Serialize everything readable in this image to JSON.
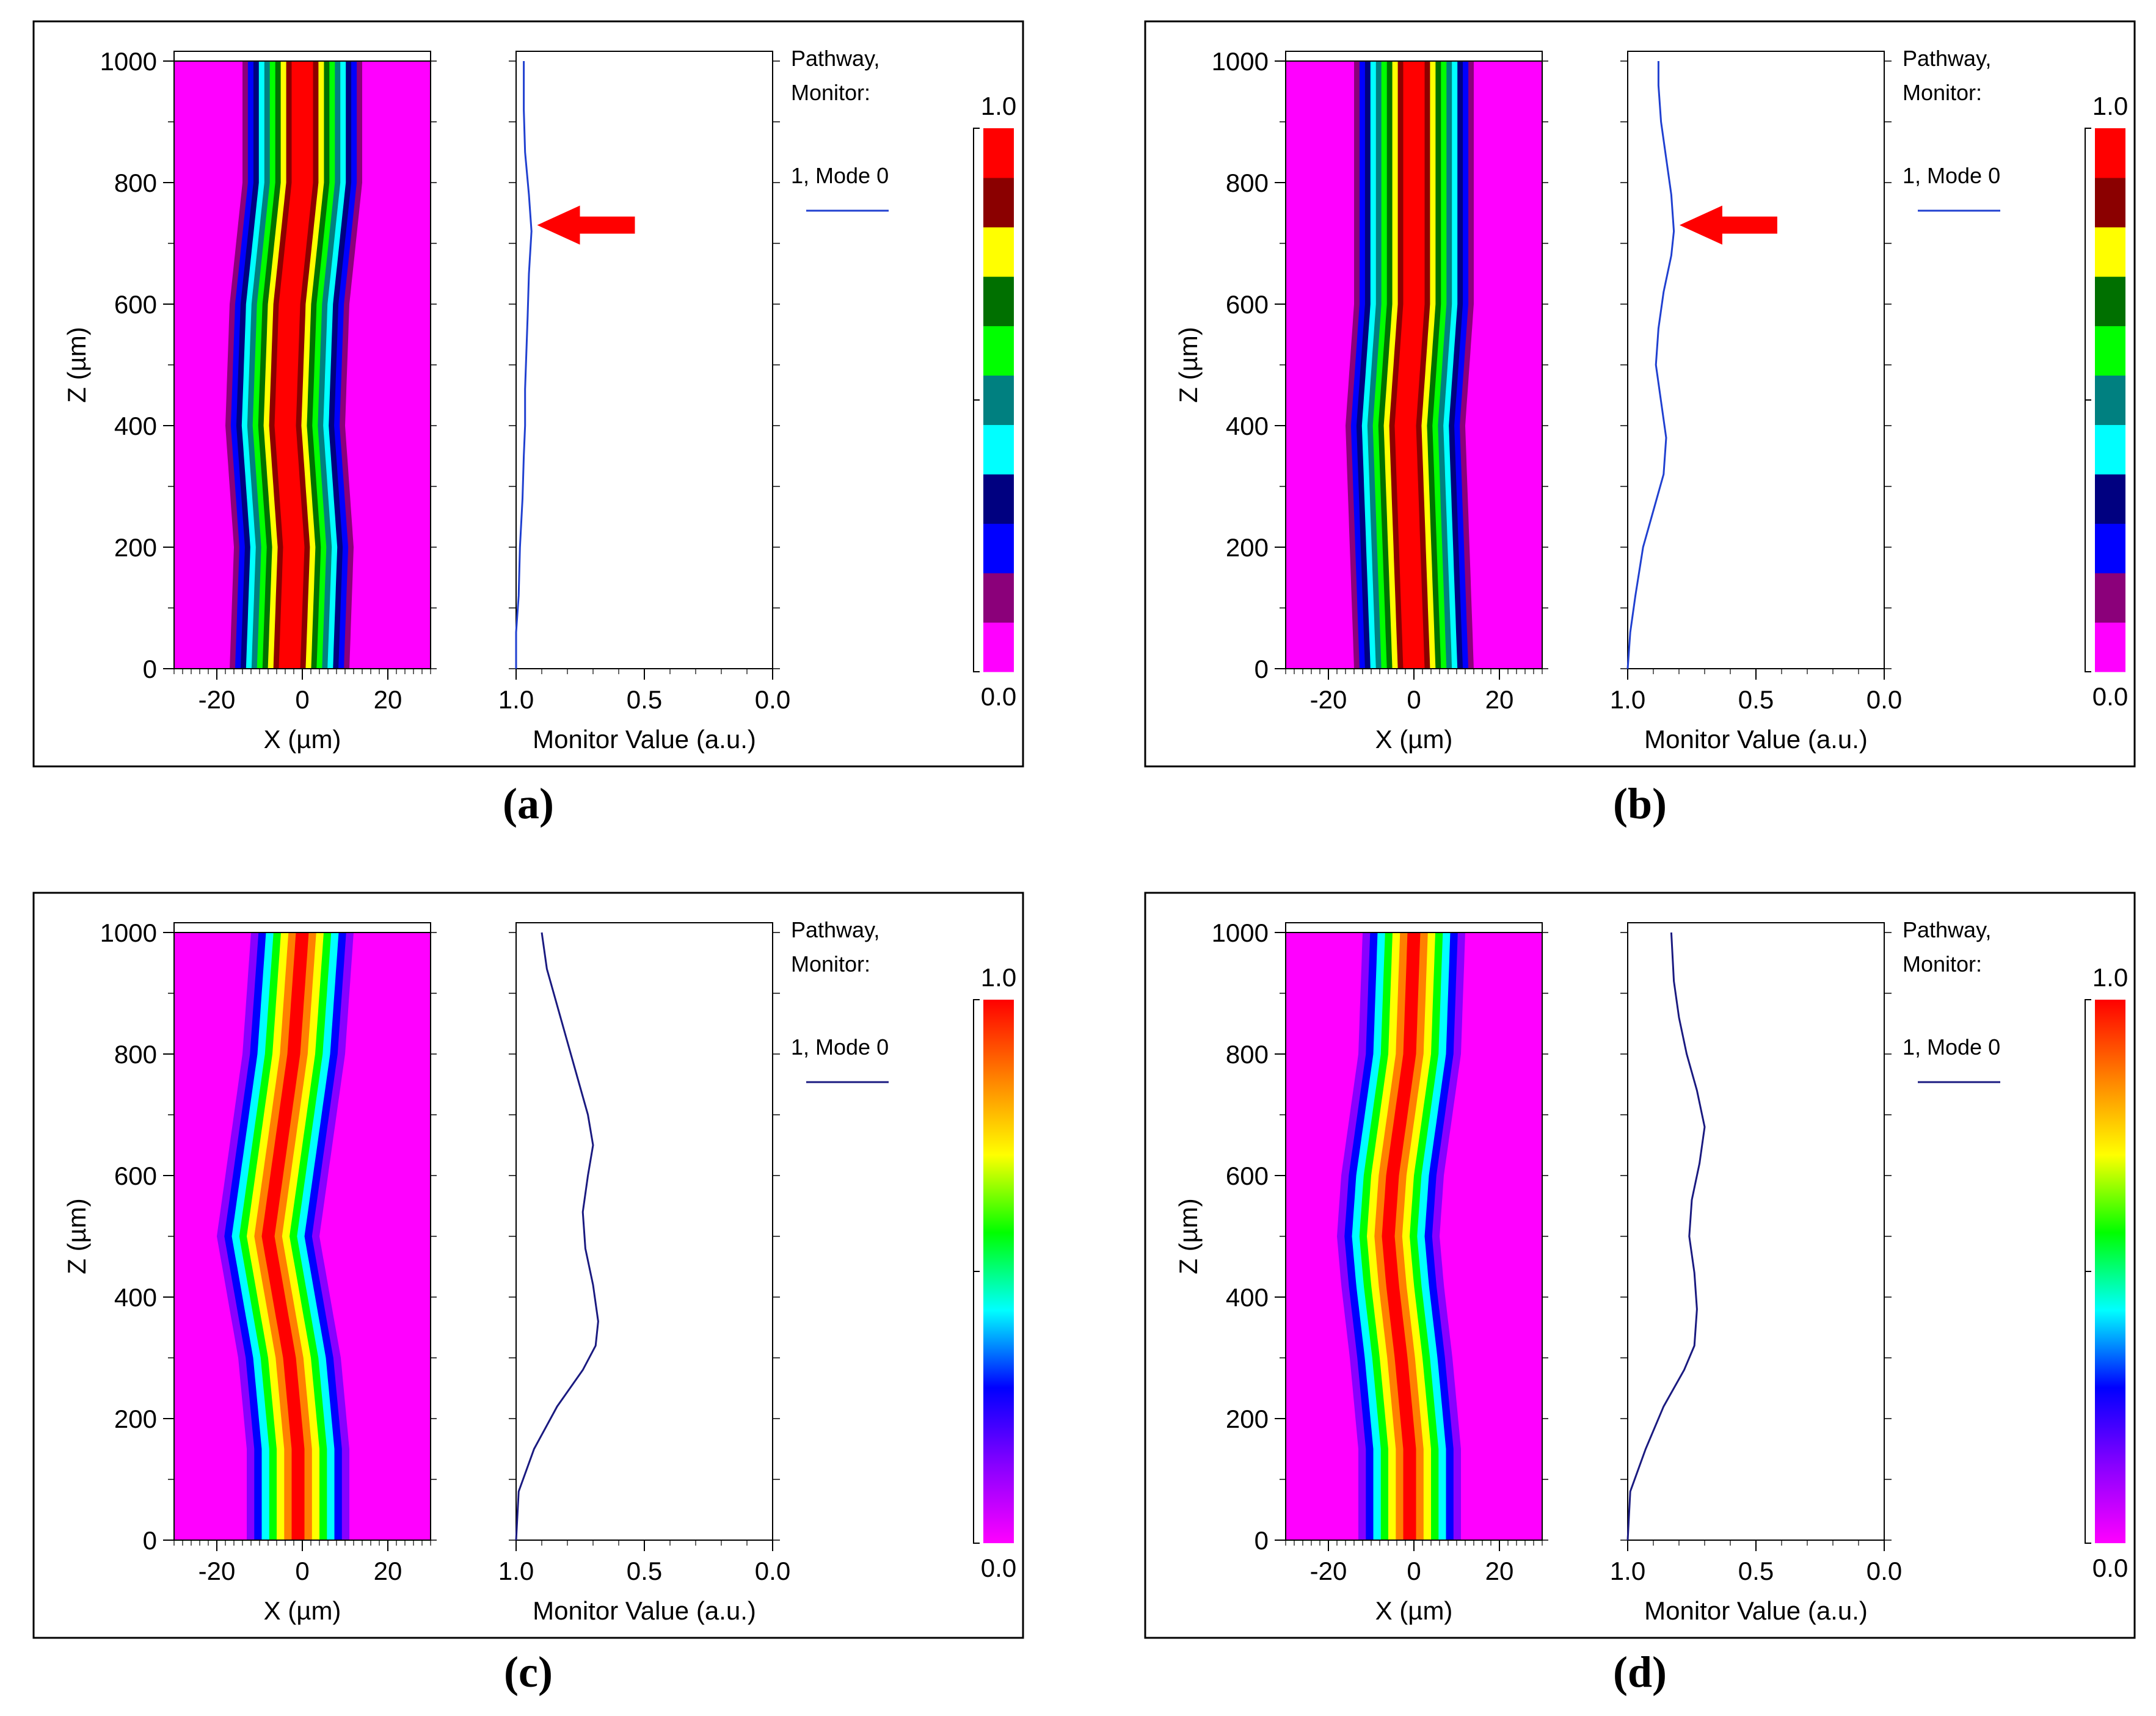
{
  "figure": {
    "panels_count": 4
  },
  "chart_data": [
    {
      "panel": "a",
      "caption": "(a)",
      "style": "discrete",
      "type": "heatmap",
      "field": {
        "xlabel": "X (µm)",
        "ylabel": "Z (µm)",
        "xlim": [
          -30,
          30
        ],
        "ylim": [
          0,
          1000
        ],
        "xticks": [
          -20,
          0,
          20
        ],
        "yticks": [
          0,
          200,
          400,
          600,
          800,
          1000
        ],
        "path_center_x": [
          [
            0,
            -3
          ],
          [
            200,
            -2
          ],
          [
            400,
            -4
          ],
          [
            600,
            -3
          ],
          [
            800,
            0
          ],
          [
            1000,
            0
          ]
        ],
        "core_halfwidth": 4
      },
      "monitor": {
        "type": "line",
        "xlabel": "Monitor Value (a.u.)",
        "xlim": [
          1.0,
          0.0
        ],
        "xticks": [
          1.0,
          0.5,
          0.0
        ],
        "line_color": "#2040d0",
        "points": [
          [
            0,
            1.0
          ],
          [
            60,
            1.0
          ],
          [
            120,
            0.99
          ],
          [
            200,
            0.985
          ],
          [
            280,
            0.975
          ],
          [
            350,
            0.97
          ],
          [
            400,
            0.965
          ],
          [
            460,
            0.965
          ],
          [
            520,
            0.96
          ],
          [
            580,
            0.955
          ],
          [
            650,
            0.95
          ],
          [
            720,
            0.94
          ],
          [
            780,
            0.95
          ],
          [
            850,
            0.965
          ],
          [
            920,
            0.97
          ],
          [
            1000,
            0.97
          ]
        ]
      },
      "legend": {
        "title_line1": "Pathway,",
        "title_line2": "Monitor:",
        "entry": "1, Mode 0",
        "color": "#2040d0"
      },
      "colorbar": {
        "max_label": "1.0",
        "min_label": "0.0"
      },
      "arrow": {
        "z": 730,
        "color": "#ff0000"
      }
    },
    {
      "panel": "b",
      "caption": "(b)",
      "style": "discrete",
      "type": "heatmap",
      "field": {
        "xlabel": "X (µm)",
        "ylabel": "Z (µm)",
        "xlim": [
          -30,
          30
        ],
        "ylim": [
          0,
          1000
        ],
        "xticks": [
          -20,
          0,
          20
        ],
        "yticks": [
          0,
          200,
          400,
          600,
          800,
          1000
        ],
        "path_center_x": [
          [
            0,
            0
          ],
          [
            200,
            -1
          ],
          [
            400,
            -2
          ],
          [
            600,
            0
          ],
          [
            800,
            0
          ],
          [
            1000,
            0
          ]
        ],
        "core_halfwidth": 4
      },
      "monitor": {
        "type": "line",
        "xlabel": "Monitor Value (a.u.)",
        "xlim": [
          1.0,
          0.0
        ],
        "xticks": [
          1.0,
          0.5,
          0.0
        ],
        "line_color": "#2040d0",
        "points": [
          [
            0,
            1.0
          ],
          [
            60,
            0.99
          ],
          [
            120,
            0.97
          ],
          [
            200,
            0.94
          ],
          [
            260,
            0.9
          ],
          [
            320,
            0.86
          ],
          [
            380,
            0.85
          ],
          [
            440,
            0.87
          ],
          [
            500,
            0.89
          ],
          [
            560,
            0.88
          ],
          [
            620,
            0.86
          ],
          [
            680,
            0.83
          ],
          [
            720,
            0.82
          ],
          [
            780,
            0.83
          ],
          [
            840,
            0.85
          ],
          [
            900,
            0.87
          ],
          [
            960,
            0.88
          ],
          [
            1000,
            0.88
          ]
        ]
      },
      "legend": {
        "title_line1": "Pathway,",
        "title_line2": "Monitor:",
        "entry": "1, Mode 0",
        "color": "#2040d0"
      },
      "colorbar": {
        "max_label": "1.0",
        "min_label": "0.0"
      },
      "arrow": {
        "z": 730,
        "color": "#ff0000"
      }
    },
    {
      "panel": "c",
      "caption": "(c)",
      "style": "continuous",
      "type": "heatmap",
      "field": {
        "xlabel": "X (µm)",
        "ylabel": "Z (µm)",
        "xlim": [
          -30,
          30
        ],
        "ylim": [
          0,
          1000
        ],
        "xticks": [
          -20,
          0,
          20
        ],
        "yticks": [
          0,
          200,
          400,
          600,
          800,
          1000
        ],
        "path_center_x": [
          [
            0,
            -1
          ],
          [
            150,
            -1
          ],
          [
            300,
            -3
          ],
          [
            420,
            -6
          ],
          [
            500,
            -8
          ],
          [
            600,
            -6
          ],
          [
            700,
            -4
          ],
          [
            800,
            -2
          ],
          [
            1000,
            0
          ]
        ],
        "core_halfwidth": 3
      },
      "monitor": {
        "type": "line",
        "xlabel": "Monitor Value (a.u.)",
        "xlim": [
          1.0,
          0.0
        ],
        "xticks": [
          1.0,
          0.5,
          0.0
        ],
        "line_color": "#1a1a80",
        "points": [
          [
            0,
            1.0
          ],
          [
            80,
            0.99
          ],
          [
            150,
            0.93
          ],
          [
            220,
            0.84
          ],
          [
            280,
            0.74
          ],
          [
            320,
            0.69
          ],
          [
            360,
            0.68
          ],
          [
            420,
            0.7
          ],
          [
            480,
            0.73
          ],
          [
            540,
            0.74
          ],
          [
            600,
            0.72
          ],
          [
            650,
            0.7
          ],
          [
            700,
            0.72
          ],
          [
            760,
            0.76
          ],
          [
            820,
            0.8
          ],
          [
            880,
            0.84
          ],
          [
            940,
            0.88
          ],
          [
            1000,
            0.9
          ]
        ]
      },
      "legend": {
        "title_line1": "Pathway,",
        "title_line2": "Monitor:",
        "entry": "1, Mode 0",
        "color": "#1a1a80"
      },
      "colorbar": {
        "max_label": "1.0",
        "min_label": "0.0"
      }
    },
    {
      "panel": "d",
      "caption": "(d)",
      "style": "continuous",
      "type": "heatmap",
      "field": {
        "xlabel": "X (µm)",
        "ylabel": "Z (µm)",
        "xlim": [
          -30,
          30
        ],
        "ylim": [
          0,
          1000
        ],
        "xticks": [
          -20,
          0,
          20
        ],
        "yticks": [
          0,
          200,
          400,
          600,
          800,
          1000
        ],
        "path_center_x": [
          [
            0,
            -1
          ],
          [
            150,
            -1
          ],
          [
            300,
            -3
          ],
          [
            420,
            -5
          ],
          [
            500,
            -6
          ],
          [
            600,
            -5
          ],
          [
            700,
            -3
          ],
          [
            800,
            -1
          ],
          [
            1000,
            0
          ]
        ],
        "core_halfwidth": 3
      },
      "monitor": {
        "type": "line",
        "xlabel": "Monitor Value (a.u.)",
        "xlim": [
          1.0,
          0.0
        ],
        "xticks": [
          1.0,
          0.5,
          0.0
        ],
        "line_color": "#1a1a80",
        "points": [
          [
            0,
            1.0
          ],
          [
            80,
            0.99
          ],
          [
            150,
            0.93
          ],
          [
            220,
            0.86
          ],
          [
            280,
            0.78
          ],
          [
            320,
            0.74
          ],
          [
            380,
            0.73
          ],
          [
            440,
            0.74
          ],
          [
            500,
            0.76
          ],
          [
            560,
            0.75
          ],
          [
            620,
            0.72
          ],
          [
            680,
            0.7
          ],
          [
            740,
            0.73
          ],
          [
            800,
            0.77
          ],
          [
            860,
            0.8
          ],
          [
            920,
            0.82
          ],
          [
            1000,
            0.83
          ]
        ]
      },
      "legend": {
        "title_line1": "Pathway,",
        "title_line2": "Monitor:",
        "entry": "1, Mode 0",
        "color": "#1a1a80"
      },
      "colorbar": {
        "max_label": "1.0",
        "min_label": "0.0"
      }
    }
  ],
  "palettes": {
    "discrete": [
      "#ff00ff",
      "#8b007a",
      "#0000ff",
      "#000080",
      "#00ffff",
      "#008080",
      "#00ff00",
      "#007000",
      "#ffff00",
      "#8b0000",
      "#ff0000"
    ],
    "continuous": [
      "#ff00ff",
      "#8800ff",
      "#0000ff",
      "#00ffff",
      "#00ff00",
      "#ffff00",
      "#ff8000",
      "#ff0000"
    ]
  }
}
